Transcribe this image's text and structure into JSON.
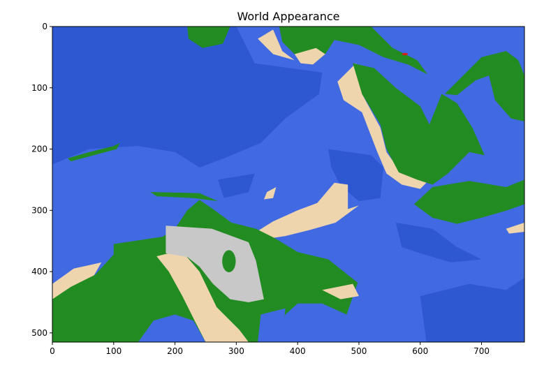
{
  "chart_data": {
    "type": "heatmap",
    "title": "World Appearance",
    "xlabel": "",
    "ylabel": "",
    "xlim": [
      0,
      770
    ],
    "ylim": [
      515,
      0
    ],
    "x_ticks": [
      "0",
      "100",
      "200",
      "300",
      "400",
      "500",
      "600",
      "700"
    ],
    "y_ticks": [
      "0",
      "100",
      "200",
      "300",
      "400",
      "500"
    ],
    "grid": false,
    "colors": {
      "ocean": "#4169e1",
      "deep_ocean": "#2e58d2",
      "land": "#228b22",
      "beach": "#eed5ae",
      "mountain": "#c8c8c8",
      "volcano": "#d02020"
    }
  }
}
